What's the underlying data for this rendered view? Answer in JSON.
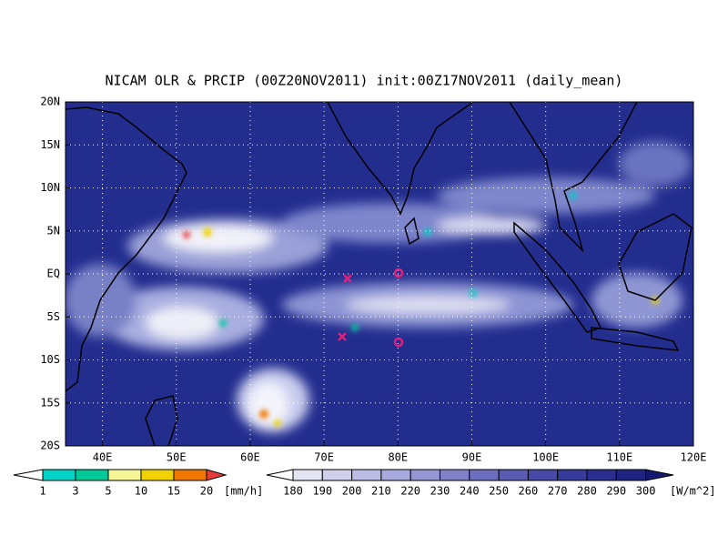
{
  "title": "NICAM OLR & PRCIP (00Z20NOV2011) init:00Z17NOV2011 (daily_mean)",
  "map": {
    "lat_labels": [
      "20N",
      "15N",
      "10N",
      "5N",
      "EQ",
      "5S",
      "10S",
      "15S",
      "20S"
    ],
    "lon_labels": [
      "40E",
      "50E",
      "60E",
      "70E",
      "80E",
      "90E",
      "100E",
      "110E",
      "120E"
    ]
  },
  "legend_precip": {
    "labels": [
      "1",
      "3",
      "5",
      "10",
      "15",
      "20"
    ],
    "unit": "[mm/h]"
  },
  "legend_olr": {
    "labels": [
      "180",
      "190",
      "200",
      "210",
      "220",
      "230",
      "240",
      "250",
      "260",
      "270",
      "280",
      "290",
      "300"
    ],
    "unit": "[W/m^2]"
  }
}
